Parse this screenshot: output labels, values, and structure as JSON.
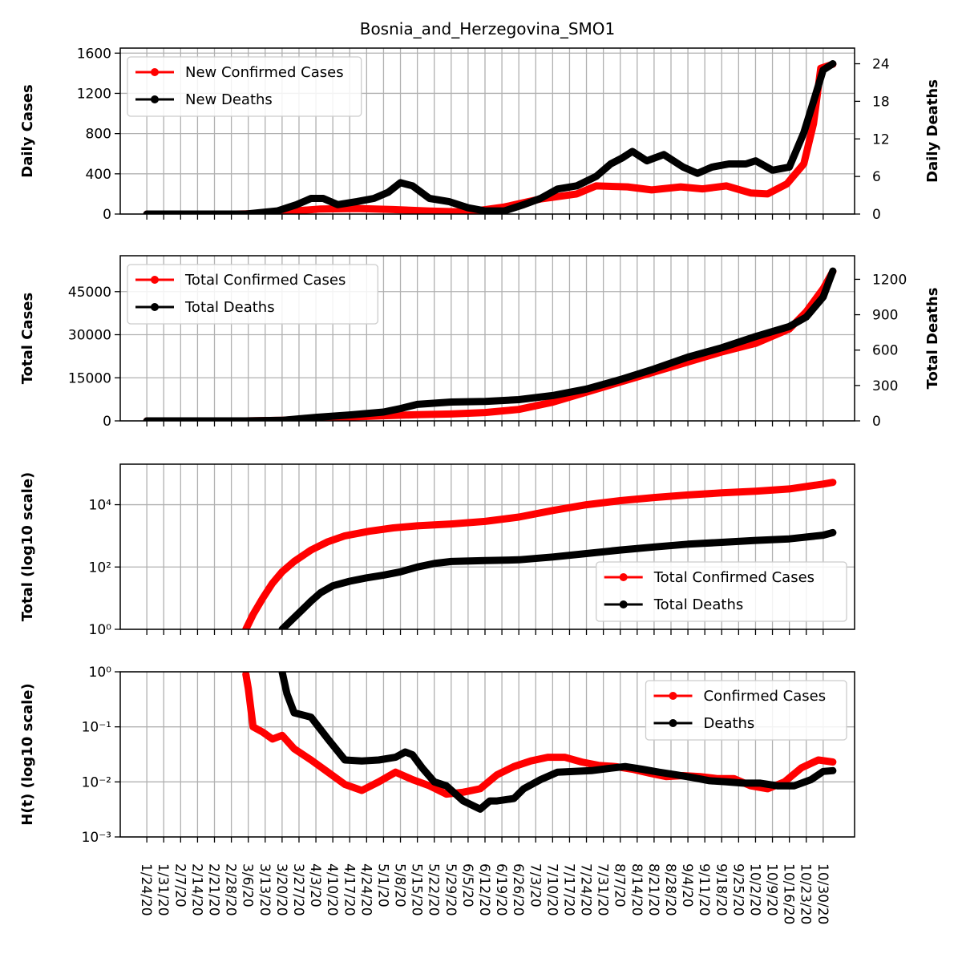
{
  "figure": {
    "title": "Bosnia_and_Herzegovina_SMO1",
    "x_tick_labels": [
      "1/24/20",
      "1/31/20",
      "2/7/20",
      "2/14/20",
      "2/21/20",
      "2/28/20",
      "3/6/20",
      "3/13/20",
      "3/20/20",
      "3/27/20",
      "4/3/20",
      "4/10/20",
      "4/17/20",
      "4/24/20",
      "5/1/20",
      "5/8/20",
      "5/15/20",
      "5/22/20",
      "5/29/20",
      "6/5/20",
      "6/12/20",
      "6/19/20",
      "6/26/20",
      "7/3/20",
      "7/10/20",
      "7/17/20",
      "7/24/20",
      "7/31/20",
      "8/7/20",
      "8/14/20",
      "8/21/20",
      "8/28/20",
      "9/4/20",
      "9/11/20",
      "9/18/20",
      "9/25/20",
      "10/2/20",
      "10/9/20",
      "10/16/20",
      "10/23/20",
      "10/30/20"
    ]
  },
  "colors": {
    "cases": "#ff0000",
    "deaths": "#000000",
    "grid": "#b0b0b0"
  },
  "chart_data": [
    {
      "type": "line",
      "ylabel": "Daily Cases",
      "ylabel_right": "Daily Deaths",
      "ylim": [
        0,
        1650
      ],
      "yticks": [
        0,
        400,
        800,
        1200,
        1600
      ],
      "ylim_right": [
        0,
        26.5
      ],
      "yticks_right": [
        0,
        6,
        12,
        18,
        24
      ],
      "legend": "top-left",
      "grid": true,
      "series": [
        {
          "name": "New Confirmed Cases",
          "color": "#ff0000",
          "axis": "left",
          "x": [
            "2020-01-24",
            "2020-03-01",
            "2020-03-12",
            "2020-03-25",
            "2020-04-05",
            "2020-04-20",
            "2020-05-05",
            "2020-05-20",
            "2020-06-05",
            "2020-06-20",
            "2020-07-05",
            "2020-07-20",
            "2020-07-28",
            "2020-08-10",
            "2020-08-20",
            "2020-09-01",
            "2020-09-10",
            "2020-09-20",
            "2020-09-30",
            "2020-10-07",
            "2020-10-15",
            "2020-10-22",
            "2020-10-26",
            "2020-10-29",
            "2020-11-03"
          ],
          "y": [
            0,
            0,
            5,
            30,
            50,
            55,
            45,
            30,
            20,
            70,
            150,
            200,
            280,
            270,
            240,
            270,
            250,
            280,
            210,
            200,
            300,
            500,
            900,
            1450,
            1490
          ]
        },
        {
          "name": "New Deaths",
          "color": "#000000",
          "axis": "right",
          "x": [
            "2020-01-24",
            "2020-03-05",
            "2020-03-18",
            "2020-03-26",
            "2020-04-01",
            "2020-04-06",
            "2020-04-12",
            "2020-04-20",
            "2020-04-27",
            "2020-05-03",
            "2020-05-08",
            "2020-05-13",
            "2020-05-20",
            "2020-05-28",
            "2020-06-05",
            "2020-06-12",
            "2020-06-20",
            "2020-06-28",
            "2020-07-05",
            "2020-07-12",
            "2020-07-20",
            "2020-07-28",
            "2020-08-03",
            "2020-08-08",
            "2020-08-12",
            "2020-08-18",
            "2020-08-25",
            "2020-09-02",
            "2020-09-08",
            "2020-09-14",
            "2020-09-21",
            "2020-09-28",
            "2020-10-02",
            "2020-10-09",
            "2020-10-16",
            "2020-10-22",
            "2020-10-26",
            "2020-10-30",
            "2020-11-03"
          ],
          "y": [
            0,
            0,
            0.5,
            1.5,
            2.5,
            2.5,
            1.5,
            2,
            2.5,
            3.5,
            5,
            4.5,
            2.5,
            2,
            1,
            0.5,
            0.5,
            1.5,
            2.5,
            4,
            4.5,
            6,
            8,
            9,
            10,
            8.5,
            9.5,
            7.5,
            6.5,
            7.5,
            8,
            8,
            8.5,
            7,
            7.5,
            13,
            18,
            23,
            24
          ]
        }
      ]
    },
    {
      "type": "line",
      "ylabel": "Total Cases",
      "ylabel_right": "Total Deaths",
      "ylim": [
        0,
        57500
      ],
      "yticks": [
        0,
        15000,
        30000,
        45000
      ],
      "ylim_right": [
        0,
        1400
      ],
      "yticks_right": [
        0,
        300,
        600,
        900,
        1200
      ],
      "legend": "top-left",
      "grid": true,
      "series": [
        {
          "name": "Total Confirmed Cases",
          "color": "#ff0000",
          "axis": "left",
          "x": [
            "2020-01-24",
            "2020-03-05",
            "2020-03-20",
            "2020-04-03",
            "2020-04-17",
            "2020-05-01",
            "2020-05-15",
            "2020-05-29",
            "2020-06-12",
            "2020-06-26",
            "2020-07-10",
            "2020-07-24",
            "2020-08-07",
            "2020-08-21",
            "2020-09-04",
            "2020-09-18",
            "2020-10-02",
            "2020-10-16",
            "2020-10-23",
            "2020-10-30",
            "2020-11-03"
          ],
          "y": [
            0,
            0,
            200,
            800,
            1300,
            1800,
            2150,
            2400,
            2900,
            4000,
            6500,
            10000,
            13500,
            17000,
            20500,
            24000,
            27000,
            32000,
            38000,
            46000,
            52000
          ]
        },
        {
          "name": "Total Deaths",
          "color": "#000000",
          "axis": "right",
          "x": [
            "2020-01-24",
            "2020-03-05",
            "2020-03-20",
            "2020-04-03",
            "2020-04-17",
            "2020-05-01",
            "2020-05-08",
            "2020-05-15",
            "2020-05-29",
            "2020-06-12",
            "2020-06-26",
            "2020-07-10",
            "2020-07-24",
            "2020-08-07",
            "2020-08-21",
            "2020-09-04",
            "2020-09-18",
            "2020-10-02",
            "2020-10-16",
            "2020-10-23",
            "2020-10-30",
            "2020-11-03"
          ],
          "y": [
            0,
            0,
            5,
            30,
            50,
            75,
            105,
            140,
            160,
            165,
            180,
            215,
            270,
            350,
            440,
            540,
            620,
            715,
            800,
            880,
            1050,
            1270
          ]
        }
      ]
    },
    {
      "type": "line",
      "ylabel": "Total (log10 scale)",
      "yscale": "log",
      "ylim": [
        1,
        200000
      ],
      "yticks": [
        1,
        100,
        10000
      ],
      "legend": "bottom-right",
      "grid": true,
      "series": [
        {
          "name": "Total Confirmed Cases",
          "color": "#ff0000",
          "x": [
            "2020-03-05",
            "2020-03-08",
            "2020-03-12",
            "2020-03-16",
            "2020-03-20",
            "2020-03-25",
            "2020-04-01",
            "2020-04-08",
            "2020-04-15",
            "2020-04-25",
            "2020-05-05",
            "2020-05-15",
            "2020-05-29",
            "2020-06-12",
            "2020-06-26",
            "2020-07-10",
            "2020-07-24",
            "2020-08-07",
            "2020-08-21",
            "2020-09-04",
            "2020-09-18",
            "2020-10-02",
            "2020-10-16",
            "2020-10-30",
            "2020-11-03"
          ],
          "y": [
            1,
            3,
            10,
            30,
            70,
            150,
            350,
            650,
            1000,
            1400,
            1800,
            2100,
            2400,
            2900,
            4000,
            6500,
            10000,
            13500,
            17000,
            20500,
            24000,
            27000,
            32000,
            46000,
            52000
          ]
        },
        {
          "name": "Total Deaths",
          "color": "#000000",
          "x": [
            "2020-03-20",
            "2020-03-24",
            "2020-03-28",
            "2020-04-01",
            "2020-04-05",
            "2020-04-10",
            "2020-04-17",
            "2020-04-24",
            "2020-05-01",
            "2020-05-08",
            "2020-05-15",
            "2020-05-22",
            "2020-05-29",
            "2020-06-12",
            "2020-06-26",
            "2020-07-10",
            "2020-07-24",
            "2020-08-07",
            "2020-08-21",
            "2020-09-04",
            "2020-09-18",
            "2020-10-02",
            "2020-10-16",
            "2020-10-30",
            "2020-11-03"
          ],
          "y": [
            1,
            2,
            4,
            8,
            15,
            25,
            35,
            45,
            55,
            70,
            100,
            130,
            150,
            160,
            170,
            210,
            270,
            350,
            440,
            540,
            620,
            715,
            800,
            1050,
            1270
          ]
        }
      ]
    },
    {
      "type": "line",
      "ylabel": "H(t) (log10 scale)",
      "yscale": "log",
      "ylim": [
        0.001,
        1
      ],
      "yticks": [
        0.001,
        0.01,
        0.1,
        1
      ],
      "legend": "top-right",
      "grid": true,
      "series": [
        {
          "name": "Confirmed Cases",
          "color": "#ff0000",
          "x": [
            "2020-03-05",
            "2020-03-06",
            "2020-03-08",
            "2020-03-12",
            "2020-03-16",
            "2020-03-20",
            "2020-03-25",
            "2020-04-01",
            "2020-04-08",
            "2020-04-15",
            "2020-04-22",
            "2020-04-29",
            "2020-05-06",
            "2020-05-13",
            "2020-05-20",
            "2020-05-27",
            "2020-06-03",
            "2020-06-10",
            "2020-06-17",
            "2020-06-24",
            "2020-07-01",
            "2020-07-08",
            "2020-07-15",
            "2020-07-22",
            "2020-07-29",
            "2020-08-05",
            "2020-08-12",
            "2020-08-19",
            "2020-08-26",
            "2020-09-02",
            "2020-09-09",
            "2020-09-16",
            "2020-09-23",
            "2020-09-30",
            "2020-10-07",
            "2020-10-14",
            "2020-10-21",
            "2020-10-28",
            "2020-11-03"
          ],
          "y": [
            0.9,
            0.5,
            0.1,
            0.08,
            0.06,
            0.07,
            0.04,
            0.025,
            0.015,
            0.009,
            0.007,
            0.01,
            0.015,
            0.011,
            0.0085,
            0.006,
            0.0065,
            0.0075,
            0.0135,
            0.019,
            0.024,
            0.028,
            0.028,
            0.023,
            0.02,
            0.019,
            0.017,
            0.0145,
            0.0125,
            0.013,
            0.0125,
            0.0115,
            0.0115,
            0.0085,
            0.0075,
            0.01,
            0.018,
            0.025,
            0.023
          ]
        },
        {
          "name": "Deaths",
          "color": "#000000",
          "x": [
            "2020-03-20",
            "2020-03-22",
            "2020-03-25",
            "2020-04-01",
            "2020-04-08",
            "2020-04-15",
            "2020-04-22",
            "2020-04-29",
            "2020-05-06",
            "2020-05-10",
            "2020-05-13",
            "2020-05-17",
            "2020-05-22",
            "2020-05-27",
            "2020-06-03",
            "2020-06-10",
            "2020-06-14",
            "2020-06-17",
            "2020-06-24",
            "2020-06-28",
            "2020-07-05",
            "2020-07-12",
            "2020-07-19",
            "2020-07-26",
            "2020-08-02",
            "2020-08-09",
            "2020-08-16",
            "2020-08-23",
            "2020-08-30",
            "2020-09-06",
            "2020-09-13",
            "2020-09-20",
            "2020-09-27",
            "2020-10-04",
            "2020-10-11",
            "2020-10-18",
            "2020-10-25",
            "2020-10-30",
            "2020-11-03"
          ],
          "y": [
            1,
            0.4,
            0.18,
            0.15,
            0.06,
            0.025,
            0.024,
            0.025,
            0.028,
            0.035,
            0.031,
            0.018,
            0.01,
            0.0085,
            0.0045,
            0.0032,
            0.0045,
            0.0045,
            0.005,
            0.0075,
            0.011,
            0.015,
            0.0155,
            0.016,
            0.0175,
            0.019,
            0.017,
            0.015,
            0.0135,
            0.012,
            0.0105,
            0.01,
            0.0095,
            0.0095,
            0.0085,
            0.0085,
            0.011,
            0.0155,
            0.016
          ]
        }
      ]
    }
  ]
}
